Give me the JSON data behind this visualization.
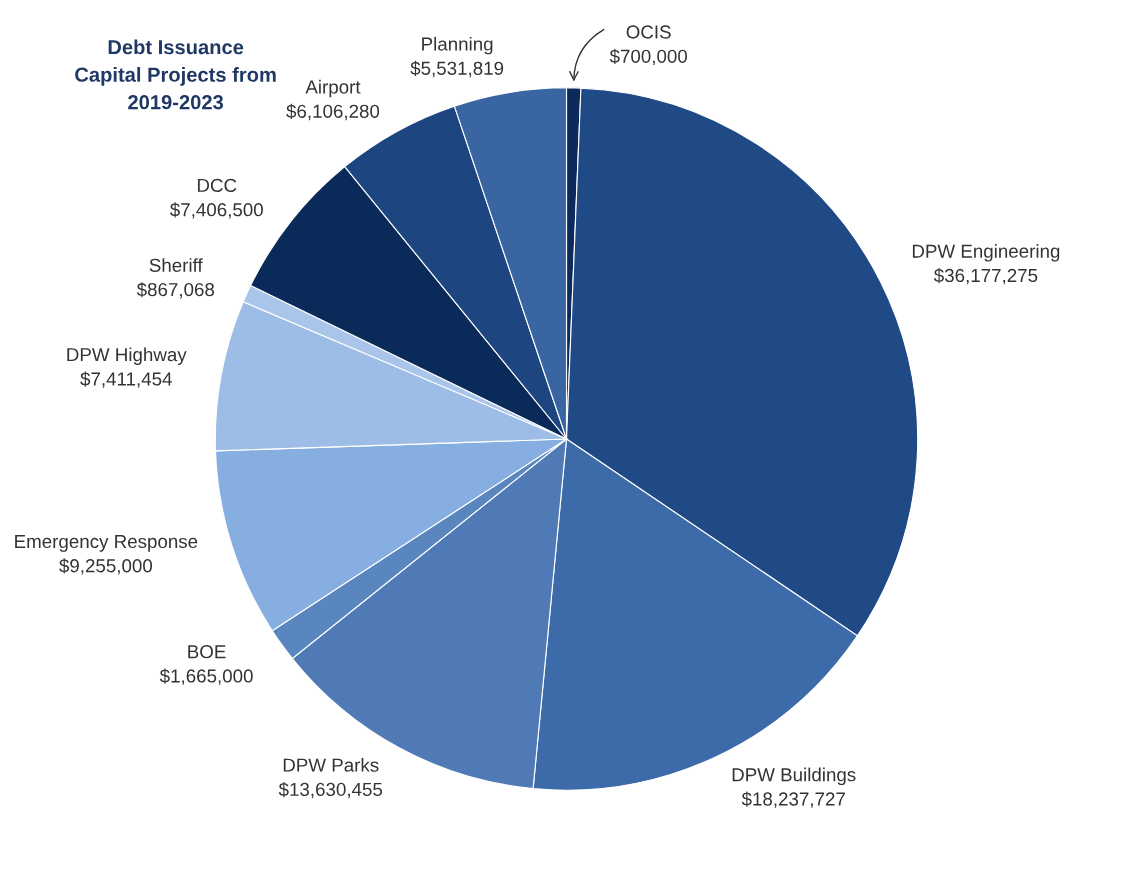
{
  "chart_data": {
    "type": "pie",
    "title": "Debt Issuance\nCapital Projects from\n2019-2023",
    "categories": [
      "OCIS",
      "DPW Engineering",
      "DPW Buildings",
      "DPW Parks",
      "BOE",
      "Emergency Response",
      "DPW Highway",
      "Sheriff",
      "DCC",
      "Airport",
      "Planning"
    ],
    "values": [
      700000,
      36177275,
      18237727,
      13630455,
      1665000,
      9255000,
      7411454,
      867068,
      7406500,
      6106280,
      5531819
    ],
    "value_labels": [
      "$700,000",
      "$36,177,275",
      "$18,237,727",
      "$13,630,455",
      "$1,665,000",
      "$9,255,000",
      "$7,411,454",
      "$867,068",
      "$7,406,500",
      "$6,106,280",
      "$5,531,819"
    ],
    "colors": [
      "#0d2a5c",
      "#1f4a85",
      "#3d6aa8",
      "#4f7ab5",
      "#5a86c0",
      "#86aee0",
      "#9dbde6",
      "#aac5ea",
      "#0a2a5a",
      "#1d4580",
      "#3a65a3"
    ],
    "legend": false
  }
}
